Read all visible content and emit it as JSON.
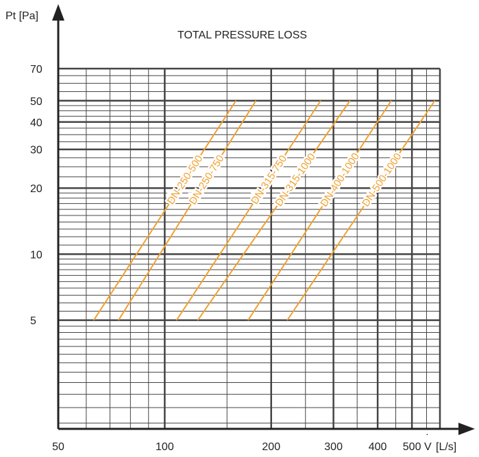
{
  "chart_data": {
    "type": "line",
    "title": "TOTAL PRESSURE LOSS",
    "ylabel": "Pt [Pa]",
    "xlabel_symbol": "V",
    "xlabel_unit": "[L/s]",
    "x_scale": "log",
    "y_scale": "log",
    "xlim": [
      50,
      600
    ],
    "ylim": [
      1.6,
      70
    ],
    "x_ticks": [
      50,
      100,
      200,
      300,
      400,
      500
    ],
    "x_tick_labels": [
      "50",
      "100",
      "200",
      "300",
      "400",
      "500"
    ],
    "y_ticks": [
      5,
      10,
      20,
      30,
      40,
      50,
      70
    ],
    "y_tick_labels": [
      "5",
      "10",
      "20",
      "30",
      "40",
      "50",
      "70"
    ],
    "grid": true,
    "line_color": "#f0a030",
    "series": [
      {
        "name": "DN-250-500",
        "x": [
          63,
          159
        ],
        "y": [
          5,
          50
        ]
      },
      {
        "name": "DN-250-750",
        "x": [
          74,
          181
        ],
        "y": [
          5,
          50
        ]
      },
      {
        "name": "DN-315-750",
        "x": [
          108,
          276
        ],
        "y": [
          5,
          50
        ]
      },
      {
        "name": "DN-315-1000",
        "x": [
          124,
          334
        ],
        "y": [
          5,
          50
        ]
      },
      {
        "name": "DN-400-1000",
        "x": [
          172,
          437
        ],
        "y": [
          5,
          50
        ]
      },
      {
        "name": "DN-500-1000",
        "x": [
          222,
          580
        ],
        "y": [
          5,
          50
        ]
      }
    ]
  }
}
